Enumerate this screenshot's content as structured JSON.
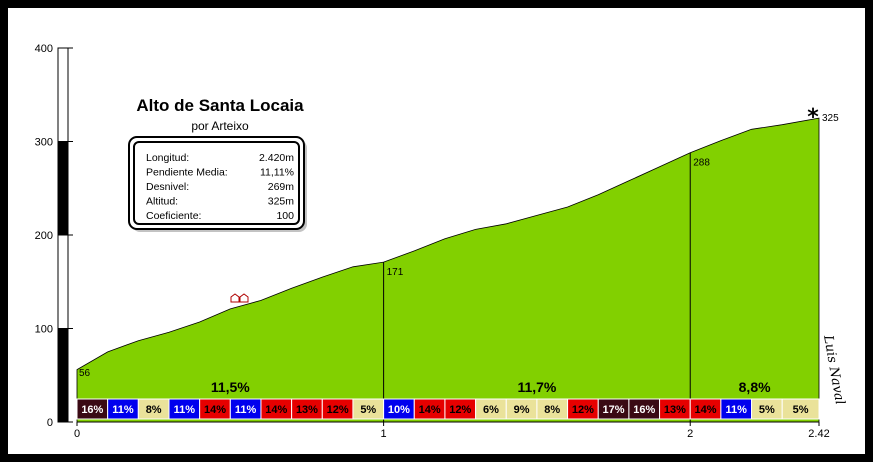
{
  "chart_data": {
    "type": "area",
    "title": "Alto de Santa Locaia",
    "subtitle": "por Arteixo",
    "x": [
      0,
      0.1,
      0.2,
      0.3,
      0.4,
      0.5,
      0.6,
      0.7,
      0.8,
      0.9,
      1.0,
      1.1,
      1.2,
      1.3,
      1.4,
      1.5,
      1.6,
      1.7,
      1.8,
      1.9,
      2.0,
      2.1,
      2.2,
      2.3,
      2.42
    ],
    "y": [
      56,
      75,
      87,
      96,
      107,
      121,
      130,
      143,
      155,
      166,
      171,
      183,
      196,
      206,
      212,
      221,
      230,
      243,
      258,
      273,
      288,
      301,
      313,
      318,
      325
    ],
    "xlim": [
      0,
      2.42
    ],
    "ylim": [
      0,
      400
    ],
    "xticks": [
      "0",
      "1",
      "2",
      "2.42"
    ],
    "xtick_values": [
      0,
      1,
      2,
      2.42
    ],
    "yticks": [
      "0",
      "100",
      "200",
      "300",
      "400"
    ],
    "ytick_values": [
      0,
      100,
      200,
      300,
      400
    ],
    "km_markers": [
      {
        "x": 1,
        "altitude": 171,
        "label": "171"
      },
      {
        "x": 2,
        "altitude": 288,
        "label": "288"
      }
    ],
    "start_label": "56",
    "summit_label": "325",
    "summit_symbol": "*",
    "km_averages": [
      {
        "x": 0.5,
        "label": "11,5%"
      },
      {
        "x": 1.5,
        "label": "11,7%"
      },
      {
        "x": 2.21,
        "label": "8,8%"
      }
    ],
    "segments": [
      {
        "label": "16%",
        "bg": "#3a0a14",
        "fg": "#ffffff"
      },
      {
        "label": "11%",
        "bg": "#0000ee",
        "fg": "#ffffff"
      },
      {
        "label": "8%",
        "bg": "#eae29a",
        "fg": "#000000"
      },
      {
        "label": "11%",
        "bg": "#0000ee",
        "fg": "#ffffff"
      },
      {
        "label": "14%",
        "bg": "#e60000",
        "fg": "#000000"
      },
      {
        "label": "11%",
        "bg": "#0000ee",
        "fg": "#ffffff"
      },
      {
        "label": "14%",
        "bg": "#e60000",
        "fg": "#000000"
      },
      {
        "label": "13%",
        "bg": "#e60000",
        "fg": "#000000"
      },
      {
        "label": "12%",
        "bg": "#e60000",
        "fg": "#000000"
      },
      {
        "label": "5%",
        "bg": "#eae29a",
        "fg": "#000000"
      },
      {
        "label": "10%",
        "bg": "#0000ee",
        "fg": "#ffffff"
      },
      {
        "label": "14%",
        "bg": "#e60000",
        "fg": "#000000"
      },
      {
        "label": "12%",
        "bg": "#e60000",
        "fg": "#000000"
      },
      {
        "label": "6%",
        "bg": "#eae29a",
        "fg": "#000000"
      },
      {
        "label": "9%",
        "bg": "#eae29a",
        "fg": "#000000"
      },
      {
        "label": "8%",
        "bg": "#eae29a",
        "fg": "#000000"
      },
      {
        "label": "12%",
        "bg": "#e60000",
        "fg": "#000000"
      },
      {
        "label": "17%",
        "bg": "#3a0a14",
        "fg": "#ffffff"
      },
      {
        "label": "16%",
        "bg": "#3a0a14",
        "fg": "#ffffff"
      },
      {
        "label": "13%",
        "bg": "#e60000",
        "fg": "#000000"
      },
      {
        "label": "14%",
        "bg": "#e60000",
        "fg": "#000000"
      },
      {
        "label": "11%",
        "bg": "#0000ee",
        "fg": "#ffffff"
      },
      {
        "label": "5%",
        "bg": "#eae29a",
        "fg": "#000000"
      },
      {
        "label": "5%",
        "bg": "#eae29a",
        "fg": "#000000"
      }
    ],
    "profile_color": "#82d000",
    "info_box": [
      {
        "key": "Longitud:",
        "value": "2.420m"
      },
      {
        "key": "Pendiente Media:",
        "value": "11,11%"
      },
      {
        "key": "Desnivel:",
        "value": "269m"
      },
      {
        "key": "Altitud:",
        "value": "325m"
      },
      {
        "key": "Coeficiente:",
        "value": "100"
      }
    ],
    "author": "Luis Naval"
  }
}
